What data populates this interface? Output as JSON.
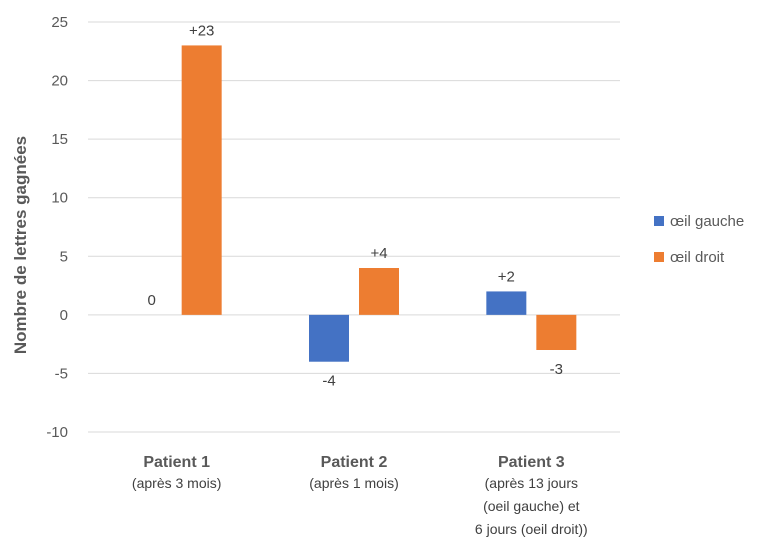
{
  "chart_data": {
    "type": "bar",
    "title": "",
    "xlabel": "",
    "ylabel": "Nombre de lettres gagnées",
    "ylim": [
      -10,
      25
    ],
    "yticks": [
      -10,
      -5,
      0,
      5,
      10,
      15,
      20,
      25
    ],
    "grid": true,
    "legend_position": "right",
    "categories": [
      {
        "name": "Patient 1",
        "sub": [
          "(après 3 mois)"
        ]
      },
      {
        "name": "Patient 2",
        "sub": [
          "(après 1 mois)"
        ]
      },
      {
        "name": "Patient 3",
        "sub": [
          "(après 13 jours",
          "(oeil gauche) et",
          "6 jours (oeil droit))"
        ]
      }
    ],
    "series": [
      {
        "name": "œil gauche",
        "color": "#4472C4",
        "values": [
          0,
          -4,
          2
        ],
        "labels": [
          "0",
          "-4",
          "+2"
        ]
      },
      {
        "name": "œil droit",
        "color": "#ED7D31",
        "values": [
          23,
          4,
          -3
        ],
        "labels": [
          "+23",
          "+4",
          "-3"
        ]
      }
    ]
  }
}
